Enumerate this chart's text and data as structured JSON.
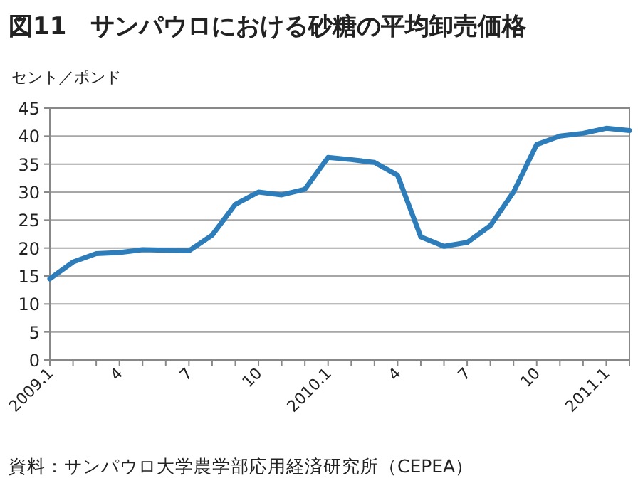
{
  "chart_data": {
    "type": "line",
    "title": "図11　サンパウロにおける砂糖の平均卸売価格",
    "ylabel": "セント／ポンド",
    "categories": [
      "2009.1",
      null,
      null,
      "4",
      null,
      null,
      "7",
      null,
      null,
      "10",
      null,
      null,
      "2010.1",
      null,
      null,
      "4",
      null,
      null,
      "7",
      null,
      null,
      "10",
      null,
      null,
      "2011.1",
      null
    ],
    "series": [
      {
        "color": "#2e7dbb",
        "values": [
          14.5,
          17.5,
          19,
          19.2,
          19.7,
          19.6,
          19.5,
          22.3,
          27.8,
          30,
          29.5,
          30.5,
          36.2,
          35.8,
          35.3,
          33,
          22,
          20.3,
          21,
          24,
          30,
          38.5,
          40,
          40.5,
          41.4,
          41
        ]
      }
    ],
    "ylim": [
      0,
      45
    ],
    "yticks": [
      0,
      5,
      10,
      15,
      20,
      25,
      30,
      35,
      40,
      45
    ],
    "grid": "y",
    "marker": "none",
    "line_style": "solid",
    "annotations": [
      "資料：サンパウロ大学農学部応用経済研究所（CEPEA）"
    ]
  }
}
